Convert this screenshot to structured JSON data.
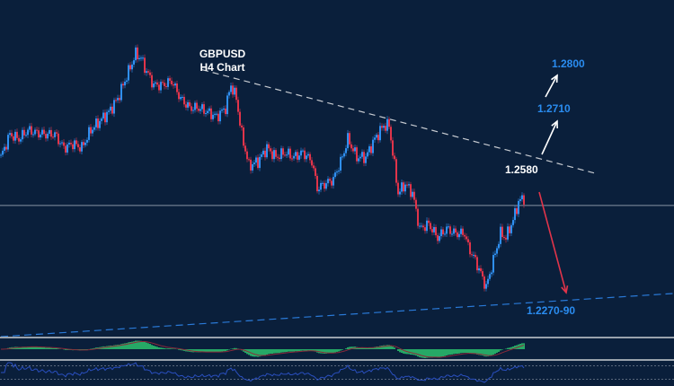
{
  "chart_data": {
    "type": "candlestick",
    "title": "GBPUSD",
    "subtitle": "H4 Chart",
    "ylim": [
      1.2211,
      1.2935
    ],
    "xlim": [
      0,
      375
    ],
    "grid": false,
    "colors": {
      "background": "#0a1f3b",
      "up": "#2f8ff0",
      "down": "#e0344a",
      "target_label": "#2a8cf0",
      "histogram": "#2ecc71",
      "signal": "#8b2a3a",
      "rsi": "#2a4fbf"
    },
    "close_path": {
      "bar": [
        0,
        5,
        10,
        15,
        20,
        25,
        30,
        35,
        40,
        45,
        50,
        55,
        60,
        65,
        70,
        75,
        78,
        80,
        85,
        90,
        95,
        100,
        105,
        110,
        115,
        120,
        125,
        128,
        131,
        134,
        138,
        143,
        148,
        153,
        158,
        163,
        168,
        173,
        176,
        180,
        185,
        190,
        193,
        198,
        203,
        208,
        213,
        216,
        219,
        221,
        225,
        229,
        233,
        238,
        243,
        248,
        253,
        258,
        260,
        264,
        268,
        270,
        274,
        278,
        281,
        285,
        288,
        291
      ],
      "price": [
        1.2597,
        1.2646,
        1.2636,
        1.2655,
        1.2649,
        1.2646,
        1.2646,
        1.2617,
        1.2626,
        1.2617,
        1.2655,
        1.2675,
        1.2694,
        1.2723,
        1.2771,
        1.2819,
        1.281,
        1.279,
        1.2752,
        1.2752,
        1.2761,
        1.2723,
        1.2703,
        1.2703,
        1.2694,
        1.2684,
        1.2703,
        1.2752,
        1.2723,
        1.2646,
        1.2578,
        1.2588,
        1.2617,
        1.2597,
        1.2607,
        1.2597,
        1.2607,
        1.2588,
        1.253,
        1.2539,
        1.2549,
        1.2597,
        1.2636,
        1.2597,
        1.2597,
        1.2636,
        1.2665,
        1.2665,
        1.2578,
        1.252,
        1.2539,
        1.252,
        1.2443,
        1.2453,
        1.2424,
        1.2443,
        1.2433,
        1.2433,
        1.2404,
        1.2375,
        1.2337,
        1.2317,
        1.2375,
        1.2433,
        1.2424,
        1.2462,
        1.2501,
        1.251
      ]
    },
    "horizontal_level": 1.2493,
    "trendlines": [
      {
        "style": "dashed-white",
        "from": [
          112,
          1.2785
        ],
        "to": [
          330,
          1.2563
        ]
      },
      {
        "style": "dashed-blue",
        "from": [
          0,
          1.2211
        ],
        "to": [
          375,
          1.2304
        ]
      }
    ],
    "annotations": {
      "target_1": "1.2800",
      "target_2": "1.2710",
      "pivot": "1.2580",
      "support": "1.2270-90"
    },
    "indicators": [
      "MACD histogram",
      "RSI"
    ],
    "rsi_levels": [
      70,
      30
    ]
  }
}
